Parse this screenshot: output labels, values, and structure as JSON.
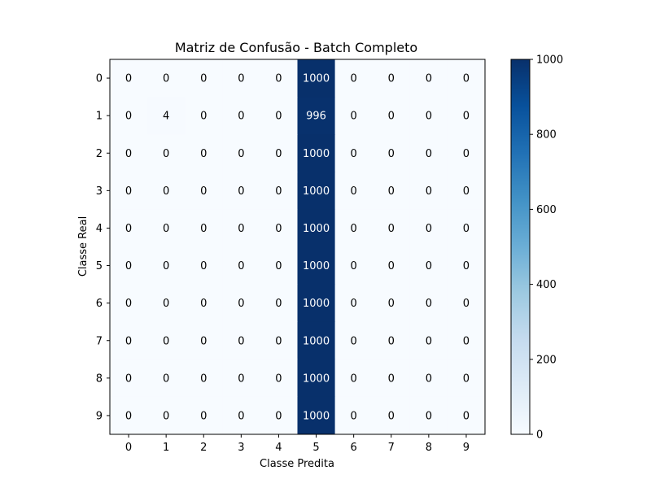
{
  "chart_data": {
    "type": "heatmap",
    "title": "Matriz de Confusão - Batch Completo",
    "xlabel": "Classe Predita",
    "ylabel": "Classe Real",
    "x_categories": [
      "0",
      "1",
      "2",
      "3",
      "4",
      "5",
      "6",
      "7",
      "8",
      "9"
    ],
    "y_categories": [
      "0",
      "1",
      "2",
      "3",
      "4",
      "5",
      "6",
      "7",
      "8",
      "9"
    ],
    "values": [
      [
        0,
        0,
        0,
        0,
        0,
        1000,
        0,
        0,
        0,
        0
      ],
      [
        0,
        4,
        0,
        0,
        0,
        996,
        0,
        0,
        0,
        0
      ],
      [
        0,
        0,
        0,
        0,
        0,
        1000,
        0,
        0,
        0,
        0
      ],
      [
        0,
        0,
        0,
        0,
        0,
        1000,
        0,
        0,
        0,
        0
      ],
      [
        0,
        0,
        0,
        0,
        0,
        1000,
        0,
        0,
        0,
        0
      ],
      [
        0,
        0,
        0,
        0,
        0,
        1000,
        0,
        0,
        0,
        0
      ],
      [
        0,
        0,
        0,
        0,
        0,
        1000,
        0,
        0,
        0,
        0
      ],
      [
        0,
        0,
        0,
        0,
        0,
        1000,
        0,
        0,
        0,
        0
      ],
      [
        0,
        0,
        0,
        0,
        0,
        1000,
        0,
        0,
        0,
        0
      ],
      [
        0,
        0,
        0,
        0,
        0,
        1000,
        0,
        0,
        0,
        0
      ]
    ],
    "colormap": "Blues",
    "colormap_low": "#f7fbff",
    "colormap_high": "#08306b",
    "text_color_dark": "#000000",
    "text_color_light": "#ffffff",
    "colorbar": {
      "range": [
        0,
        1000
      ],
      "ticks": [
        "0",
        "200",
        "400",
        "600",
        "800",
        "1000"
      ]
    }
  }
}
